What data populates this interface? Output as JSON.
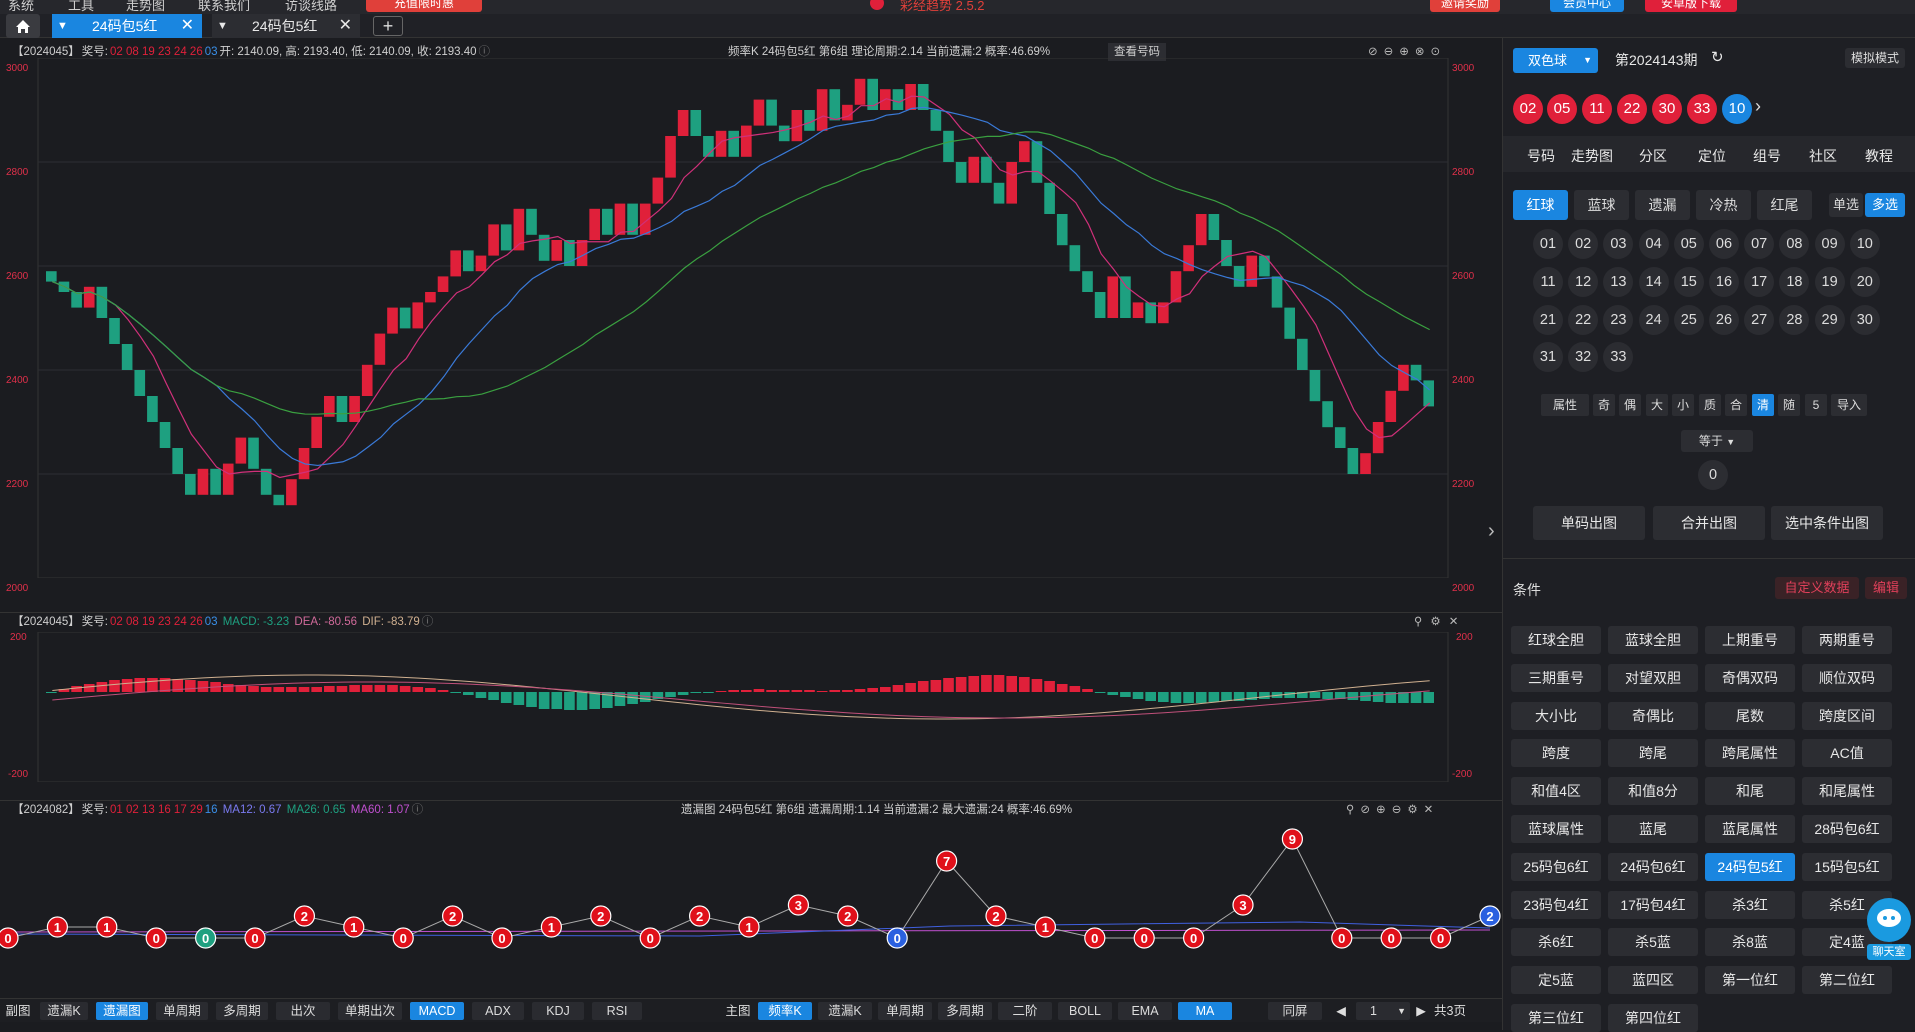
{
  "topbar": {
    "menus": [
      "系统",
      "工具",
      "走势图",
      "联系我们",
      "访谈线路"
    ],
    "promo": "充值限时惠",
    "app_title": "彩经趋势 2.5.2",
    "btn_reward": "邀请奖励",
    "btn_member": "会员中心",
    "btn_download": "安卓版下载"
  },
  "tabs": [
    {
      "label": "24码包5红",
      "active": true
    },
    {
      "label": "24码包5红",
      "active": false
    }
  ],
  "panel1": {
    "issue": "【2024045】",
    "award_label": "奖号:",
    "red_nums": "02 08 19 23 24 26",
    "blue_num": "03",
    "ohlc": "开: 2140.09, 高: 2193.40, 低: 2140.09, 收: 2193.40",
    "info": "频率K  24码包5红  第6组   理论周期:2.14  当前遗漏:2  概率:46.69%",
    "view_btn": "查看号码",
    "y_labels": [
      "3000",
      "2800",
      "2600",
      "2400",
      "2200",
      "2000"
    ]
  },
  "panel2": {
    "issue": "【2024045】",
    "award_label": "奖号:",
    "red_nums": "02 08 19 23 24 26",
    "blue_num": "03",
    "macd": "MACD: -3.23",
    "dea": "DEA: -80.56",
    "dif": "DIF: -83.79",
    "y_labels": [
      "200",
      "-200"
    ]
  },
  "panel3": {
    "issue": "【2024082】",
    "award_label": "奖号:",
    "red_nums": "01 02 13 16 17 29",
    "blue_num": "16",
    "ma12": "MA12: 0.67",
    "ma26": "MA26: 0.65",
    "ma60": "MA60: 1.07",
    "info": "遗漏图  24码包5红  第6组   遗漏周期:1.14  当前遗漏:2  最大遗漏:24  概率:46.69%",
    "values": [
      "0",
      "1",
      "1",
      "0",
      "0",
      "0",
      "2",
      "1",
      "0",
      "2",
      "0",
      "1",
      "2",
      "0",
      "2",
      "1",
      "3",
      "2",
      "0",
      "7",
      "2",
      "1",
      "0",
      "0",
      "0",
      "3",
      "9",
      "0",
      "0",
      "0",
      "2"
    ]
  },
  "bottom_left": [
    "副图",
    "遗漏K",
    "遗漏图",
    "单周期",
    "多周期",
    "出次",
    "单期出次",
    "MACD",
    "ADX",
    "KDJ",
    "RSI"
  ],
  "bottom_right": [
    "主图",
    "频率K",
    "遗漏K",
    "单周期",
    "多周期",
    "二阶",
    "BOLL",
    "EMA",
    "MA"
  ],
  "pager": {
    "same_screen": "同屏",
    "page": "1",
    "total": "共3页"
  },
  "right": {
    "lottery": "双色球",
    "issue": "第2024143期",
    "mode": "模拟模式",
    "red_balls": [
      "02",
      "05",
      "11",
      "22",
      "30",
      "33"
    ],
    "blue_ball": "10",
    "nav": [
      "号码",
      "走势图",
      "分区",
      "定位",
      "组号",
      "社区",
      "教程"
    ],
    "sub": [
      "红球",
      "蓝球",
      "遗漏",
      "冷热",
      "红尾"
    ],
    "single": "单选",
    "multi": "多选",
    "numbers": [
      "01",
      "02",
      "03",
      "04",
      "05",
      "06",
      "07",
      "08",
      "09",
      "10",
      "11",
      "12",
      "13",
      "14",
      "15",
      "16",
      "17",
      "18",
      "19",
      "20",
      "21",
      "22",
      "23",
      "24",
      "25",
      "26",
      "27",
      "28",
      "29",
      "30",
      "31",
      "32",
      "33"
    ],
    "attrs": [
      "属性",
      "奇",
      "偶",
      "大",
      "小",
      "质",
      "合",
      "清",
      "随",
      "5",
      "导入"
    ],
    "equals": "等于",
    "count": "0",
    "actions": [
      "单码出图",
      "合并出图",
      "选中条件出图"
    ],
    "cond_title": "条件",
    "custom_data": "自定义数据",
    "edit": "编辑",
    "conditions": [
      "红球全胆",
      "蓝球全胆",
      "上期重号",
      "两期重号",
      "三期重号",
      "对望双胆",
      "奇偶双码",
      "顺位双码",
      "大小比",
      "奇偶比",
      "尾数",
      "跨度区间",
      "跨度",
      "跨尾",
      "跨尾属性",
      "AC值",
      "和值4区",
      "和值8分",
      "和尾",
      "和尾属性",
      "蓝球属性",
      "蓝尾",
      "蓝尾属性",
      "28码包6红",
      "25码包6红",
      "24码包6红",
      "24码包5红",
      "15码包5红",
      "23码包4红",
      "17码包4红",
      "杀3红",
      "杀5红",
      "杀6红",
      "杀5蓝",
      "杀8蓝",
      "定4蓝",
      "定5蓝",
      "蓝四区",
      "第一位红",
      "第二位红",
      "第三位红",
      "第四位红"
    ],
    "chat": "聊天室"
  },
  "colors": {
    "up": "#e0203a",
    "down": "#1ea080",
    "accent": "#1a86e0",
    "bg": "#1b1c20"
  }
}
